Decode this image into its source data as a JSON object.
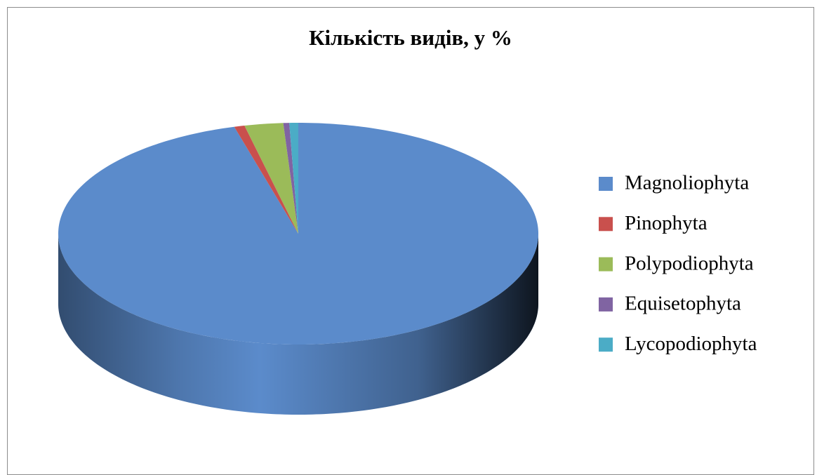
{
  "chart_data": {
    "type": "pie3d",
    "title": "Кількість видів, у %",
    "categories": [
      "Magnoliophyta",
      "Pinophyta",
      "Polypodiophyta",
      "Equisetophyta",
      "Lycopodiophyta"
    ],
    "values": [
      95.7,
      0.7,
      2.6,
      0.4,
      0.6
    ],
    "colors": [
      "#5b8bcb",
      "#c9504d",
      "#9bbb59",
      "#8064a2",
      "#4bacc6"
    ],
    "legend": "right"
  }
}
